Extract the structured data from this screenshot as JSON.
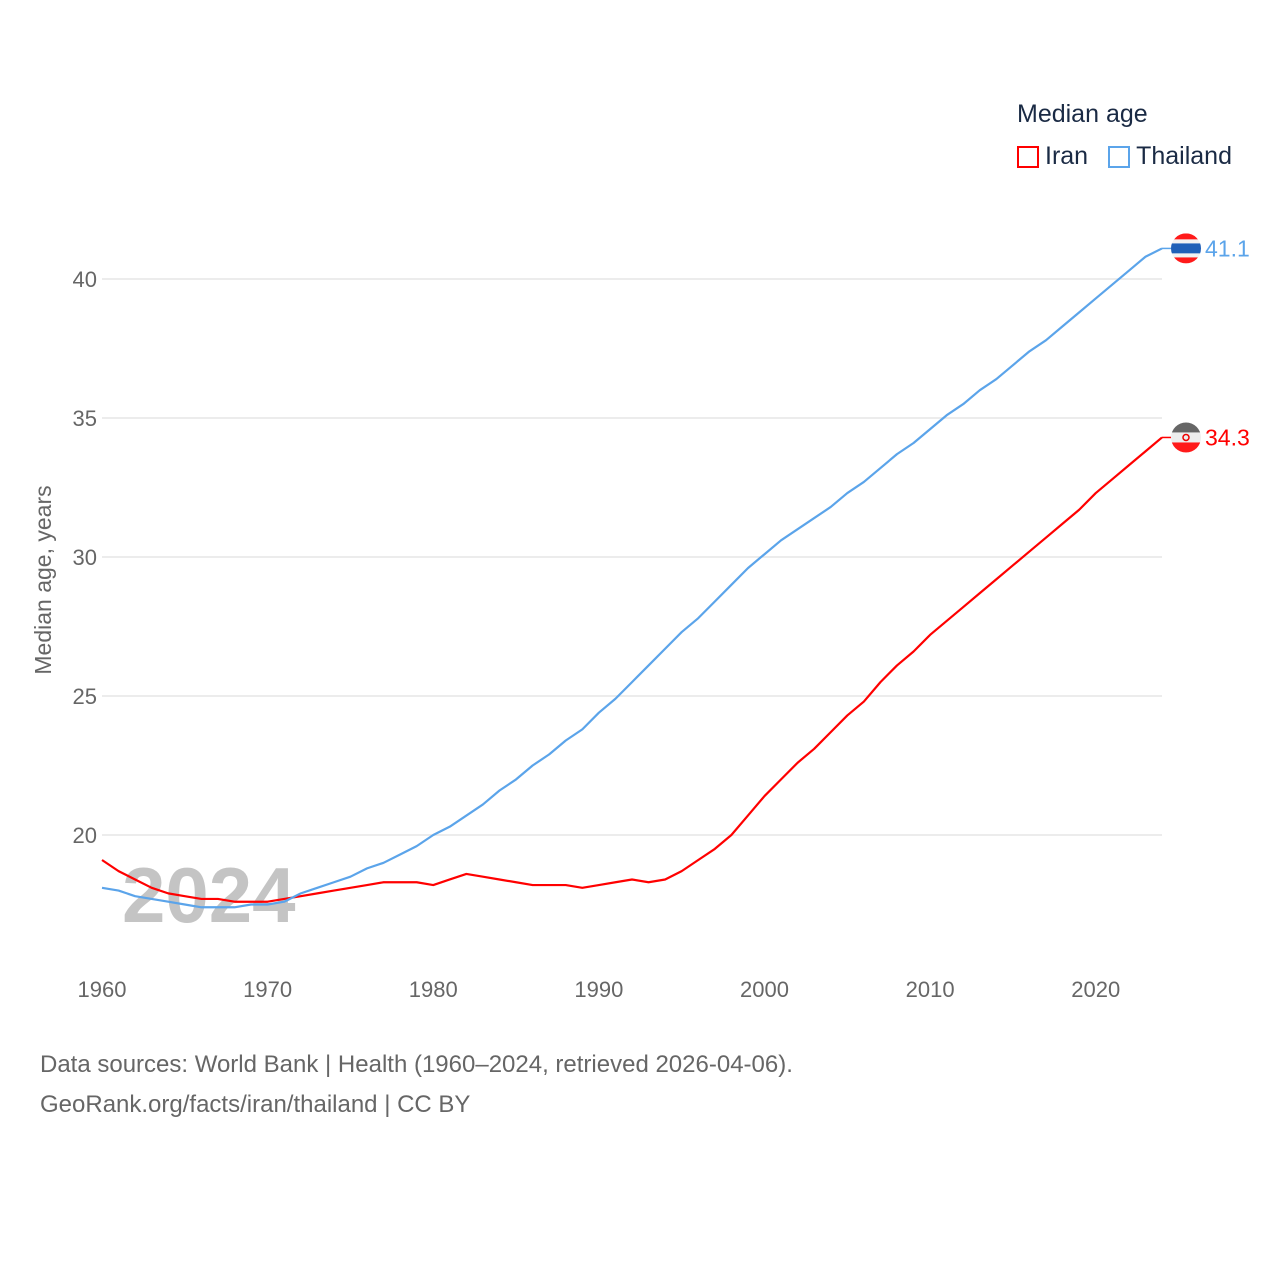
{
  "chart_data": {
    "type": "line",
    "title": "Median age",
    "xlabel": "",
    "ylabel": "Median age, years",
    "xlim": [
      1960,
      2024
    ],
    "ylim": [
      16.5,
      42
    ],
    "yticks": [
      20,
      25,
      30,
      35,
      40
    ],
    "xticks": [
      1960,
      1970,
      1980,
      1990,
      2000,
      2010,
      2020
    ],
    "grid": true,
    "legend_position": "top-right",
    "watermark_year": "2024",
    "x": [
      1960,
      1961,
      1962,
      1963,
      1964,
      1965,
      1966,
      1967,
      1968,
      1969,
      1970,
      1971,
      1972,
      1973,
      1974,
      1975,
      1976,
      1977,
      1978,
      1979,
      1980,
      1981,
      1982,
      1983,
      1984,
      1985,
      1986,
      1987,
      1988,
      1989,
      1990,
      1991,
      1992,
      1993,
      1994,
      1995,
      1996,
      1997,
      1998,
      1999,
      2000,
      2001,
      2002,
      2003,
      2004,
      2005,
      2006,
      2007,
      2008,
      2009,
      2010,
      2011,
      2012,
      2013,
      2014,
      2015,
      2016,
      2017,
      2018,
      2019,
      2020,
      2021,
      2022,
      2023,
      2024
    ],
    "series": [
      {
        "name": "Iran",
        "color": "#ff0000",
        "end_label": "34.3",
        "values": [
          19.1,
          18.7,
          18.4,
          18.1,
          17.9,
          17.8,
          17.7,
          17.7,
          17.6,
          17.6,
          17.6,
          17.7,
          17.8,
          17.9,
          18.0,
          18.1,
          18.2,
          18.3,
          18.3,
          18.3,
          18.2,
          18.4,
          18.6,
          18.5,
          18.4,
          18.3,
          18.2,
          18.2,
          18.2,
          18.1,
          18.2,
          18.3,
          18.4,
          18.3,
          18.4,
          18.7,
          19.1,
          19.5,
          20.0,
          20.7,
          21.4,
          22.0,
          22.6,
          23.1,
          23.7,
          24.3,
          24.8,
          25.5,
          26.1,
          26.6,
          27.2,
          27.7,
          28.2,
          28.7,
          29.2,
          29.7,
          30.2,
          30.7,
          31.2,
          31.7,
          32.3,
          32.8,
          33.3,
          33.8,
          34.3
        ]
      },
      {
        "name": "Thailand",
        "color": "#5ba4ea",
        "end_label": "41.1",
        "values": [
          18.1,
          18.0,
          17.8,
          17.7,
          17.6,
          17.5,
          17.4,
          17.4,
          17.4,
          17.5,
          17.5,
          17.6,
          17.9,
          18.1,
          18.3,
          18.5,
          18.8,
          19.0,
          19.3,
          19.6,
          20.0,
          20.3,
          20.7,
          21.1,
          21.6,
          22.0,
          22.5,
          22.9,
          23.4,
          23.8,
          24.4,
          24.9,
          25.5,
          26.1,
          26.7,
          27.3,
          27.8,
          28.4,
          29.0,
          29.6,
          30.1,
          30.6,
          31.0,
          31.4,
          31.8,
          32.3,
          32.7,
          33.2,
          33.7,
          34.1,
          34.6,
          35.1,
          35.5,
          36.0,
          36.4,
          36.9,
          37.4,
          37.8,
          38.3,
          38.8,
          39.3,
          39.8,
          40.3,
          40.8,
          41.1
        ]
      }
    ]
  },
  "legend": {
    "title": "Median age",
    "items": [
      "Iran",
      "Thailand"
    ]
  },
  "footer": {
    "line1": "Data sources: World Bank | Health (1960–2024, retrieved 2026-04-06).",
    "line2": "GeoRank.org/facts/iran/thailand | CC BY"
  }
}
